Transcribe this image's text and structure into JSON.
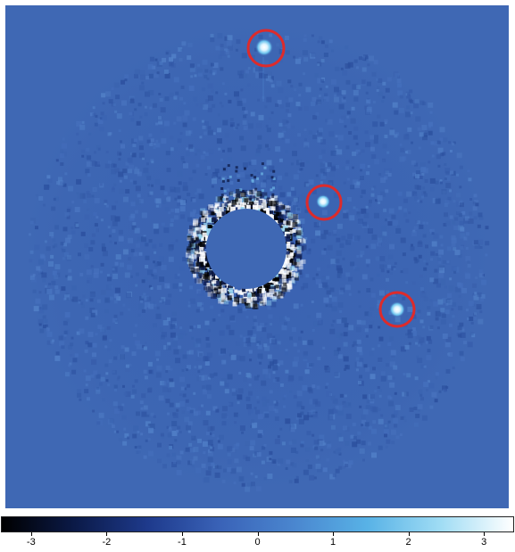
{
  "image": {
    "subject": "coronagraphic-high-contrast-image",
    "background_color": "#3f68b4",
    "highlight_color": "#dd2b2b",
    "marked_sources": 3
  },
  "colorbar": {
    "colormap": [
      "#000000",
      "#0b1a48",
      "#1e3a8c",
      "#3a63b8",
      "#4a86cf",
      "#58b2e6",
      "#9fdcf4",
      "#ffffff"
    ],
    "min": -3.4,
    "max": 3.4,
    "ticks": [
      "-3",
      "-2",
      "-1",
      "0",
      "1",
      "2",
      "3"
    ]
  }
}
